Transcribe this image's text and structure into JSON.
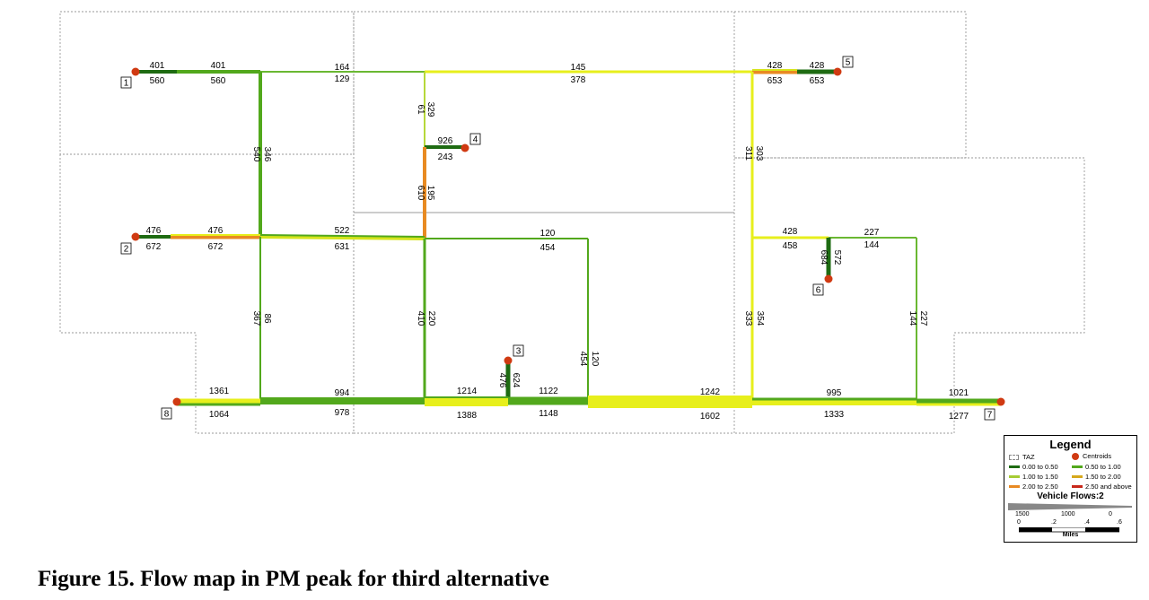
{
  "figure": {
    "caption": "Figure 15. Flow map in PM peak for third alternative"
  },
  "colors": {
    "ratio_0_050": "#1e6b12",
    "ratio_050_100": "#52a81c",
    "ratio_100_150": "#a6cc34",
    "ratio_150_200": "#d6e41c",
    "ratio_200_250": "#e88a22",
    "ratio_250_up": "#c8281a",
    "yellow": "#e7ef1c",
    "lightgreen": "#9ccd3c",
    "centroid": "#d03a12"
  },
  "centroids": [
    {
      "id": "1",
      "label": "1"
    },
    {
      "id": "2",
      "label": "2"
    },
    {
      "id": "3",
      "label": "3"
    },
    {
      "id": "4",
      "label": "4"
    },
    {
      "id": "5",
      "label": "5"
    },
    {
      "id": "6",
      "label": "6"
    },
    {
      "id": "7",
      "label": "7"
    },
    {
      "id": "8",
      "label": "8"
    }
  ],
  "flow_labels": {
    "l1": "401",
    "l2": "560",
    "l3": "401",
    "l4": "560",
    "l5": "164",
    "l6": "129",
    "l7": "145",
    "l8": "378",
    "l9": "428",
    "l10": "653",
    "l11": "428",
    "l12": "653",
    "l13": "61",
    "l14": "329",
    "l15": "926",
    "l16": "243",
    "l17": "540",
    "l18": "346",
    "l19": "610",
    "l20": "195",
    "l21": "311",
    "l22": "303",
    "l23": "476",
    "l24": "672",
    "l25": "476",
    "l26": "672",
    "l27": "522",
    "l28": "631",
    "l29": "120",
    "l30": "454",
    "l31": "428",
    "l32": "458",
    "l33": "227",
    "l34": "144",
    "l35": "684",
    "l36": "572",
    "l37": "367",
    "l38": "86",
    "l39": "410",
    "l40": "220",
    "l41": "333",
    "l42": "354",
    "l43": "144",
    "l44": "227",
    "l45": "454",
    "l46": "120",
    "l47": "476",
    "l48": "624",
    "l49": "1361",
    "l50": "1064",
    "l51": "994",
    "l52": "978",
    "l53": "1214",
    "l54": "1388",
    "l55": "1122",
    "l56": "1148",
    "l57": "1242",
    "l58": "1602",
    "l59": "995",
    "l60": "1333",
    "l61": "1021",
    "l62": "1277"
  },
  "legend": {
    "title": "Legend",
    "taz": "TAZ",
    "centroids": "Centroids",
    "ranges": [
      {
        "label": "0.00 to 0.50",
        "color": "#1e6b12"
      },
      {
        "label": "0.50 to 1.00",
        "color": "#52a81c"
      },
      {
        "label": "1.00 to 1.50",
        "color": "#a6cc34"
      },
      {
        "label": "1.50 to 2.00",
        "color": "#d6e41c"
      },
      {
        "label": "2.00 to 2.50",
        "color": "#e88a22"
      },
      {
        "label": "2.50 and above",
        "color": "#c8281a"
      }
    ],
    "vehicle_flows": "Vehicle Flows:2",
    "flow_scale": [
      "1500",
      "1000",
      "0"
    ],
    "miles_scale": [
      "0",
      ".2",
      ".4",
      ".6"
    ],
    "miles_label": "Miles"
  }
}
